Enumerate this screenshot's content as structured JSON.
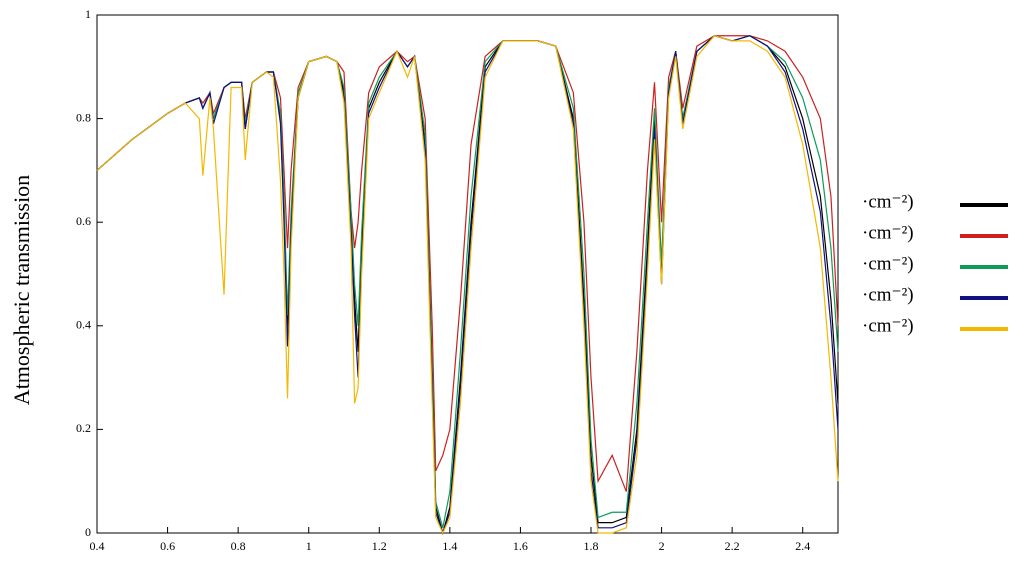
{
  "chart_data": {
    "type": "line",
    "y_label": "Atmospheric transmission",
    "x": [
      0.4,
      0.5,
      0.6,
      0.65,
      0.69,
      0.7,
      0.72,
      0.73,
      0.76,
      0.78,
      0.81,
      0.82,
      0.84,
      0.88,
      0.9,
      0.92,
      0.93,
      0.94,
      0.95,
      0.97,
      1.0,
      1.05,
      1.08,
      1.1,
      1.12,
      1.13,
      1.14,
      1.15,
      1.17,
      1.2,
      1.25,
      1.28,
      1.3,
      1.33,
      1.35,
      1.36,
      1.38,
      1.4,
      1.43,
      1.46,
      1.5,
      1.55,
      1.6,
      1.65,
      1.7,
      1.75,
      1.78,
      1.8,
      1.82,
      1.86,
      1.9,
      1.93,
      1.96,
      1.98,
      2.0,
      2.02,
      2.04,
      2.06,
      2.1,
      2.15,
      2.2,
      2.25,
      2.3,
      2.35,
      2.4,
      2.45,
      2.48,
      2.5
    ],
    "series": [
      {
        "name": "·cm⁻²)",
        "color": "#000000",
        "values": [
          0.7,
          0.76,
          0.81,
          0.83,
          0.84,
          0.82,
          0.85,
          0.8,
          0.86,
          0.87,
          0.87,
          0.78,
          0.87,
          0.89,
          0.89,
          0.8,
          0.62,
          0.4,
          0.6,
          0.84,
          0.91,
          0.92,
          0.91,
          0.85,
          0.6,
          0.45,
          0.35,
          0.55,
          0.82,
          0.87,
          0.93,
          0.9,
          0.92,
          0.75,
          0.3,
          0.05,
          0.0,
          0.05,
          0.3,
          0.6,
          0.9,
          0.95,
          0.95,
          0.95,
          0.94,
          0.8,
          0.45,
          0.15,
          0.02,
          0.02,
          0.03,
          0.2,
          0.55,
          0.8,
          0.5,
          0.85,
          0.93,
          0.8,
          0.93,
          0.96,
          0.95,
          0.96,
          0.94,
          0.9,
          0.8,
          0.65,
          0.45,
          0.25
        ]
      },
      {
        "name": "·cm⁻²)",
        "color": "#cc2020",
        "values": [
          0.7,
          0.76,
          0.81,
          0.83,
          0.84,
          0.83,
          0.85,
          0.81,
          0.86,
          0.87,
          0.87,
          0.8,
          0.87,
          0.89,
          0.89,
          0.84,
          0.7,
          0.55,
          0.7,
          0.86,
          0.91,
          0.92,
          0.91,
          0.89,
          0.62,
          0.55,
          0.6,
          0.7,
          0.85,
          0.9,
          0.93,
          0.91,
          0.92,
          0.8,
          0.4,
          0.12,
          0.15,
          0.2,
          0.45,
          0.75,
          0.92,
          0.95,
          0.95,
          0.95,
          0.94,
          0.85,
          0.6,
          0.3,
          0.1,
          0.15,
          0.08,
          0.35,
          0.7,
          0.87,
          0.6,
          0.88,
          0.93,
          0.82,
          0.94,
          0.96,
          0.96,
          0.96,
          0.95,
          0.93,
          0.88,
          0.8,
          0.65,
          0.4
        ]
      },
      {
        "name": "·cm⁻²)",
        "color": "#109a5a",
        "values": [
          0.7,
          0.76,
          0.81,
          0.83,
          0.84,
          0.82,
          0.85,
          0.8,
          0.86,
          0.87,
          0.87,
          0.79,
          0.87,
          0.89,
          0.89,
          0.81,
          0.65,
          0.42,
          0.62,
          0.85,
          0.91,
          0.92,
          0.91,
          0.86,
          0.62,
          0.48,
          0.4,
          0.58,
          0.83,
          0.88,
          0.93,
          0.9,
          0.92,
          0.77,
          0.32,
          0.06,
          0.01,
          0.08,
          0.35,
          0.65,
          0.91,
          0.95,
          0.95,
          0.95,
          0.94,
          0.82,
          0.5,
          0.18,
          0.03,
          0.04,
          0.04,
          0.25,
          0.6,
          0.82,
          0.52,
          0.86,
          0.93,
          0.8,
          0.93,
          0.96,
          0.95,
          0.96,
          0.94,
          0.91,
          0.84,
          0.72,
          0.55,
          0.35
        ]
      },
      {
        "name": "·cm⁻²)",
        "color": "#101080",
        "values": [
          0.7,
          0.76,
          0.81,
          0.83,
          0.84,
          0.82,
          0.85,
          0.79,
          0.86,
          0.87,
          0.87,
          0.78,
          0.87,
          0.89,
          0.89,
          0.79,
          0.6,
          0.36,
          0.58,
          0.84,
          0.91,
          0.92,
          0.91,
          0.84,
          0.58,
          0.42,
          0.3,
          0.52,
          0.81,
          0.86,
          0.93,
          0.9,
          0.92,
          0.74,
          0.28,
          0.04,
          0.0,
          0.04,
          0.28,
          0.58,
          0.89,
          0.95,
          0.95,
          0.95,
          0.94,
          0.79,
          0.42,
          0.12,
          0.01,
          0.01,
          0.02,
          0.18,
          0.52,
          0.78,
          0.48,
          0.85,
          0.93,
          0.79,
          0.93,
          0.96,
          0.95,
          0.96,
          0.94,
          0.89,
          0.78,
          0.62,
          0.4,
          0.2
        ]
      },
      {
        "name": "·cm⁻²)",
        "color": "#f5b800",
        "values": [
          0.7,
          0.76,
          0.81,
          0.83,
          0.8,
          0.69,
          0.84,
          0.78,
          0.46,
          0.86,
          0.86,
          0.72,
          0.87,
          0.89,
          0.88,
          0.68,
          0.5,
          0.26,
          0.55,
          0.84,
          0.91,
          0.92,
          0.91,
          0.83,
          0.55,
          0.25,
          0.28,
          0.5,
          0.8,
          0.85,
          0.93,
          0.88,
          0.92,
          0.72,
          0.25,
          0.03,
          0.0,
          0.03,
          0.25,
          0.55,
          0.88,
          0.95,
          0.95,
          0.95,
          0.94,
          0.78,
          0.4,
          0.1,
          0.0,
          0.0,
          0.01,
          0.15,
          0.5,
          0.76,
          0.48,
          0.84,
          0.92,
          0.78,
          0.92,
          0.96,
          0.95,
          0.95,
          0.93,
          0.88,
          0.75,
          0.55,
          0.3,
          0.1
        ]
      }
    ],
    "xlim": [
      0.4,
      2.5
    ],
    "xticks": [
      0.4,
      0.6,
      0.8,
      1,
      1.2,
      1.4,
      1.6,
      1.8,
      2,
      2.2,
      2.4
    ],
    "ylim": [
      0,
      1
    ],
    "yticks": [
      0,
      0.2,
      0.4,
      0.6,
      0.8,
      1
    ],
    "legend": "right"
  }
}
